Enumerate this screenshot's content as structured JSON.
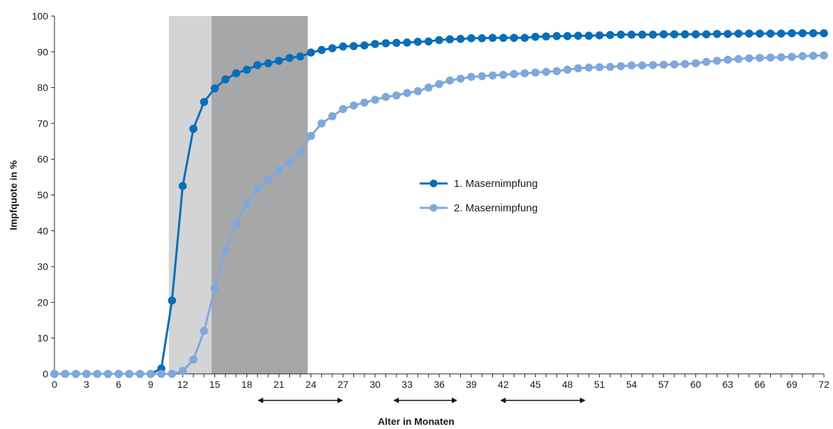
{
  "chart_data": {
    "type": "line",
    "title": "",
    "xlabel": "Alter in Monaten",
    "ylabel": "Impfquote in %",
    "xlim": [
      0,
      72
    ],
    "ylim": [
      0,
      100
    ],
    "yticks": [
      0,
      10,
      20,
      30,
      40,
      50,
      60,
      70,
      80,
      90,
      100
    ],
    "xticks": [
      0,
      3,
      6,
      9,
      12,
      15,
      18,
      21,
      24,
      27,
      30,
      33,
      36,
      39,
      42,
      45,
      48,
      51,
      54,
      57,
      60,
      63,
      66,
      69,
      72
    ],
    "grid": false,
    "legend_position": "center-right",
    "shaded_regions": [
      {
        "x_start": 10.7,
        "x_end": 14.7,
        "color": "#d3d4d6"
      },
      {
        "x_start": 14.7,
        "x_end": 23.7,
        "color": "#a6a7a9"
      }
    ],
    "range_arrows": [
      {
        "x_start": 19,
        "x_end": 27
      },
      {
        "x_start": 31.7,
        "x_end": 37.7
      },
      {
        "x_start": 41.7,
        "x_end": 49.7
      }
    ],
    "x": [
      0,
      1,
      2,
      3,
      4,
      5,
      6,
      7,
      8,
      9,
      10,
      11,
      12,
      13,
      14,
      15,
      16,
      17,
      18,
      19,
      20,
      21,
      22,
      23,
      24,
      25,
      26,
      27,
      28,
      29,
      30,
      31,
      32,
      33,
      34,
      35,
      36,
      37,
      38,
      39,
      40,
      41,
      42,
      43,
      44,
      45,
      46,
      47,
      48,
      49,
      50,
      51,
      52,
      53,
      54,
      55,
      56,
      57,
      58,
      59,
      60,
      61,
      62,
      63,
      64,
      65,
      66,
      67,
      68,
      69,
      70,
      71,
      72
    ],
    "series": [
      {
        "name": "1. Masernimpfung",
        "color": "#0a6db8",
        "values": [
          0,
          0,
          0,
          0,
          0,
          0,
          0,
          0,
          0,
          0,
          1.5,
          20.5,
          52.5,
          68.5,
          76,
          79.8,
          82.3,
          84,
          85,
          86.3,
          86.8,
          87.5,
          88.3,
          88.7,
          89.8,
          90.5,
          91,
          91.5,
          91.6,
          91.8,
          92.2,
          92.4,
          92.5,
          92.6,
          92.8,
          92.9,
          93.3,
          93.5,
          93.6,
          93.8,
          93.8,
          93.9,
          93.9,
          93.9,
          93.9,
          94.2,
          94.3,
          94.4,
          94.4,
          94.5,
          94.5,
          94.6,
          94.7,
          94.8,
          94.8,
          94.8,
          94.8,
          94.9,
          94.9,
          94.9,
          94.9,
          94.9,
          95,
          95,
          95.1,
          95.1,
          95.1,
          95.1,
          95.1,
          95.2,
          95.2,
          95.2,
          95.2
        ]
      },
      {
        "name": "2. Masernimpfung",
        "color": "#7fa8da",
        "values": [
          0,
          0,
          0,
          0,
          0,
          0,
          0,
          0,
          0,
          0,
          0,
          0,
          0.8,
          4,
          12,
          24,
          34.5,
          41.8,
          47.5,
          51.5,
          54.2,
          57,
          59,
          62,
          66.5,
          70,
          72,
          74,
          75,
          75.8,
          76.6,
          77.4,
          77.8,
          78.5,
          79,
          80,
          81,
          82,
          82.5,
          83,
          83.2,
          83.4,
          83.6,
          83.8,
          84,
          84.2,
          84.4,
          84.6,
          85,
          85.4,
          85.6,
          85.7,
          85.8,
          86,
          86.2,
          86.2,
          86.3,
          86.4,
          86.5,
          86.6,
          86.8,
          87.2,
          87.5,
          87.8,
          88,
          88.2,
          88.3,
          88.4,
          88.5,
          88.6,
          88.8,
          88.9,
          89
        ]
      }
    ]
  }
}
